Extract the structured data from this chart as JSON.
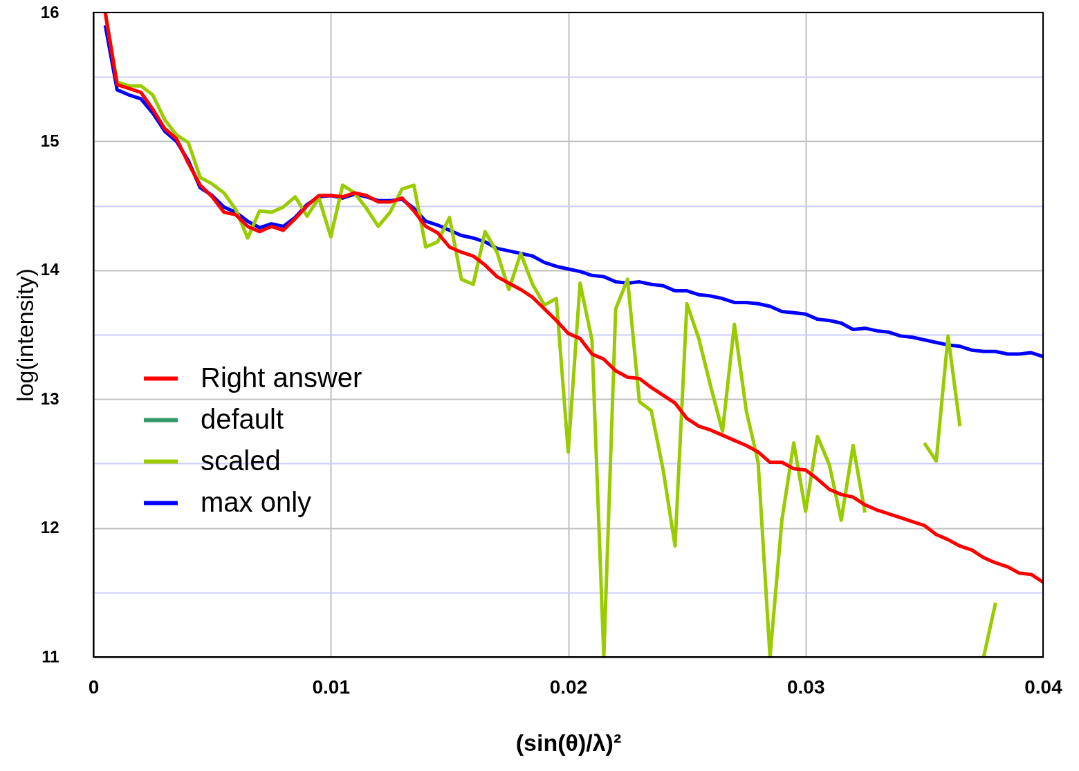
{
  "chart_data": {
    "type": "line",
    "xlabel": "(sin(θ)/λ)²",
    "ylabel": "log(intensity)",
    "x": [
      0.0005,
      0.001,
      0.0015,
      0.002,
      0.0025,
      0.003,
      0.0035,
      0.004,
      0.0045,
      0.005,
      0.0055,
      0.006,
      0.0065,
      0.007,
      0.0075,
      0.008,
      0.0085,
      0.009,
      0.0095,
      0.01,
      0.0105,
      0.011,
      0.0115,
      0.012,
      0.0125,
      0.013,
      0.0135,
      0.014,
      0.0145,
      0.015,
      0.0155,
      0.016,
      0.0165,
      0.017,
      0.0175,
      0.018,
      0.0185,
      0.019,
      0.0195,
      0.02,
      0.0205,
      0.021,
      0.0215,
      0.022,
      0.0225,
      0.023,
      0.0235,
      0.024,
      0.0245,
      0.025,
      0.0255,
      0.026,
      0.0265,
      0.027,
      0.0275,
      0.028,
      0.0285,
      0.029,
      0.0295,
      0.03,
      0.0305,
      0.031,
      0.0315,
      0.032,
      0.0325,
      0.033,
      0.0335,
      0.034,
      0.0345,
      0.035,
      0.0355,
      0.036,
      0.0365,
      0.037,
      0.0375,
      0.038,
      0.0385,
      0.039,
      0.0395,
      0.04
    ],
    "series": [
      {
        "name": "Right answer",
        "color": "#ff0000",
        "values": [
          16,
          15.44,
          15.41,
          15.38,
          15.25,
          15.1,
          15.02,
          14.83,
          14.66,
          14.57,
          14.45,
          14.43,
          14.34,
          14.3,
          14.34,
          14.31,
          14.4,
          14.5,
          14.58,
          14.58,
          14.57,
          14.6,
          14.58,
          14.53,
          14.53,
          14.56,
          14.46,
          14.34,
          14.29,
          14.18,
          14.14,
          14.11,
          14.04,
          13.95,
          13.9,
          13.85,
          13.79,
          13.7,
          13.61,
          13.51,
          13.47,
          13.35,
          13.31,
          13.22,
          13.17,
          13.16,
          13.09,
          13.03,
          12.97,
          12.85,
          12.79,
          12.76,
          12.72,
          12.68,
          12.64,
          12.59,
          12.51,
          12.51,
          12.46,
          12.45,
          12.38,
          12.3,
          12.26,
          12.24,
          12.18,
          12.14,
          12.11,
          12.08,
          12.05,
          12.02,
          11.95,
          11.91,
          11.86,
          11.83,
          11.77,
          11.73,
          11.7,
          11.65,
          11.64,
          11.58
        ]
      },
      {
        "name": "default",
        "color": "#339966",
        "values": [
          null,
          null,
          null,
          null,
          null,
          null,
          null,
          null,
          null,
          null,
          null,
          null,
          null,
          null,
          null,
          null,
          null,
          null,
          null,
          null,
          null,
          null,
          null,
          null,
          null,
          null,
          null,
          null,
          null,
          null,
          null,
          null,
          null,
          null,
          null,
          null,
          null,
          null,
          null,
          null,
          null,
          null,
          null,
          null,
          null,
          null,
          null,
          null,
          null,
          null,
          null,
          null,
          null,
          null,
          null,
          null,
          null,
          null,
          null,
          null,
          null,
          null,
          null,
          null,
          null,
          null,
          null,
          null,
          null,
          null,
          null,
          null,
          null,
          null,
          null,
          null,
          null,
          null,
          null,
          null
        ]
      },
      {
        "name": "scaled",
        "color": "#99cc00",
        "values": [
          16,
          15.46,
          15.43,
          15.43,
          15.36,
          15.17,
          15.05,
          14.99,
          14.72,
          14.67,
          14.6,
          14.47,
          14.25,
          14.46,
          14.45,
          14.49,
          14.57,
          14.42,
          14.56,
          14.26,
          14.66,
          14.6,
          14.48,
          14.34,
          14.45,
          14.63,
          14.66,
          14.18,
          14.22,
          14.41,
          13.93,
          13.89,
          14.3,
          14.14,
          13.85,
          14.13,
          13.89,
          13.73,
          13.78,
          12.59,
          13.9,
          13.46,
          11,
          13.7,
          13.93,
          12.98,
          12.91,
          12.45,
          11.86,
          13.74,
          13.47,
          13.1,
          12.75,
          13.58,
          12.91,
          12.51,
          11,
          12.06,
          12.66,
          12.13,
          12.71,
          12.49,
          12.06,
          12.64,
          12.12,
          null,
          null,
          null,
          null,
          12.66,
          12.52,
          13.49,
          12.79,
          null,
          11,
          11.42,
          null,
          null,
          null,
          null
        ]
      },
      {
        "name": "max only",
        "color": "#0000ff",
        "values": [
          15.9,
          15.4,
          15.36,
          15.33,
          15.22,
          15.08,
          15.0,
          14.85,
          14.64,
          14.58,
          14.49,
          14.45,
          14.38,
          14.33,
          14.36,
          14.34,
          14.41,
          14.51,
          14.57,
          14.58,
          14.56,
          14.59,
          14.57,
          14.54,
          14.54,
          14.55,
          14.48,
          14.38,
          14.35,
          14.31,
          14.27,
          14.25,
          14.22,
          14.17,
          14.15,
          14.13,
          14.11,
          14.06,
          14.03,
          14.01,
          13.99,
          13.96,
          13.95,
          13.91,
          13.9,
          13.91,
          13.89,
          13.88,
          13.84,
          13.84,
          13.81,
          13.8,
          13.78,
          13.75,
          13.75,
          13.74,
          13.72,
          13.68,
          13.67,
          13.66,
          13.62,
          13.61,
          13.59,
          13.54,
          13.55,
          13.53,
          13.52,
          13.49,
          13.48,
          13.46,
          13.44,
          13.42,
          13.41,
          13.38,
          13.37,
          13.37,
          13.35,
          13.35,
          13.36,
          13.33
        ]
      }
    ],
    "xlim": [
      0,
      0.04
    ],
    "xticks": [
      0,
      0.01,
      0.02,
      0.03,
      0.04
    ],
    "ylim": [
      11,
      16
    ],
    "yticks": [
      11,
      {
        "value": 11.5,
        "label": null
      },
      12,
      {
        "value": 12.5,
        "label": null
      },
      13,
      {
        "value": 13.5,
        "label": null
      },
      14,
      {
        "value": 14.5,
        "label": null
      },
      15,
      {
        "value": 15.5,
        "label": null
      },
      16
    ],
    "grid": true,
    "legend": "bottom left",
    "marker": "none",
    "line_style": "solid"
  }
}
